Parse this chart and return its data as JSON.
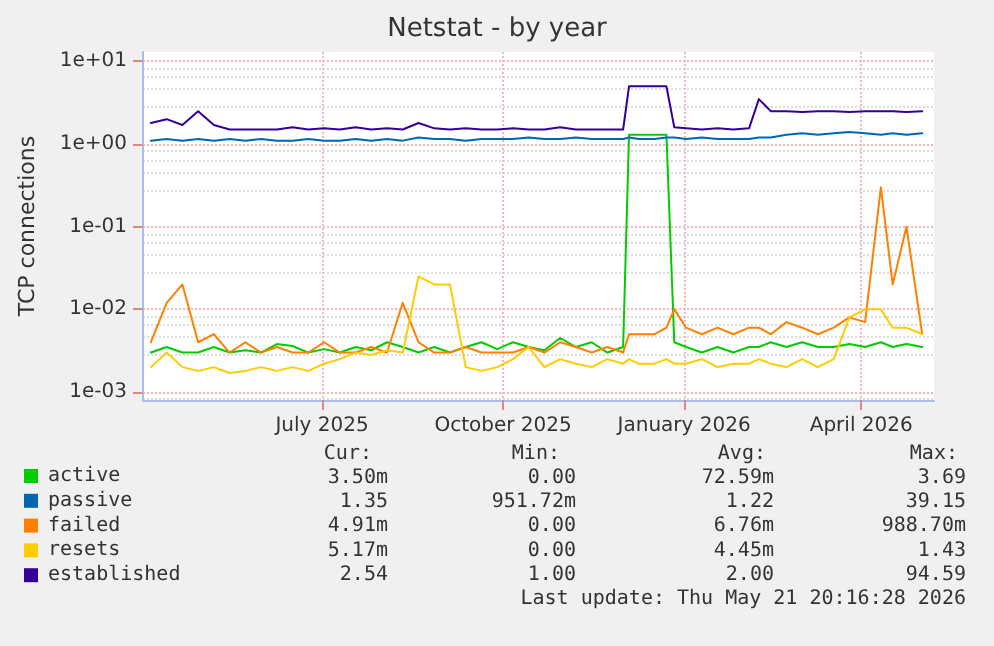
{
  "chart_data": {
    "type": "line",
    "title": "Netstat - by year",
    "ylabel": "TCP connections",
    "x": [
      "2025-04-05",
      "2025-04-13",
      "2025-04-21",
      "2025-04-29",
      "2025-05-07",
      "2025-05-15",
      "2025-05-23",
      "2025-05-31",
      "2025-06-08",
      "2025-06-16",
      "2025-06-24",
      "2025-07-02",
      "2025-07-10",
      "2025-07-18",
      "2025-07-26",
      "2025-08-03",
      "2025-08-11",
      "2025-08-19",
      "2025-08-27",
      "2025-09-04",
      "2025-09-12",
      "2025-09-20",
      "2025-09-28",
      "2025-10-06",
      "2025-10-14",
      "2025-10-22",
      "2025-10-30",
      "2025-11-07",
      "2025-11-15",
      "2025-11-23",
      "2025-12-01",
      "2025-12-04",
      "2025-12-09",
      "2025-12-17",
      "2025-12-23",
      "2025-12-27",
      "2026-01-02",
      "2026-01-10",
      "2026-01-18",
      "2026-01-26",
      "2026-02-03",
      "2026-02-08",
      "2026-02-14",
      "2026-02-22",
      "2026-03-02",
      "2026-03-10",
      "2026-03-18",
      "2026-03-26",
      "2026-04-03",
      "2026-04-11",
      "2026-04-17",
      "2026-04-24",
      "2026-05-02"
    ],
    "series": [
      {
        "name": "active",
        "color": "#00cc00",
        "values": [
          0.003,
          0.0035,
          0.003,
          0.003,
          0.0035,
          0.003,
          0.0032,
          0.003,
          0.0038,
          0.0036,
          0.003,
          0.0033,
          0.003,
          0.0035,
          0.0032,
          0.004,
          0.0035,
          0.003,
          0.0035,
          0.003,
          0.0035,
          0.004,
          0.0033,
          0.004,
          0.0035,
          0.0032,
          0.0045,
          0.0035,
          0.004,
          0.003,
          0.0035,
          1.3,
          1.3,
          1.3,
          1.3,
          0.004,
          0.0035,
          0.003,
          0.0035,
          0.003,
          0.0035,
          0.0035,
          0.004,
          0.0035,
          0.004,
          0.0035,
          0.0035,
          0.0038,
          0.0035,
          0.004,
          0.0035,
          0.0038,
          0.0035
        ]
      },
      {
        "name": "passive",
        "color": "#0066b3",
        "values": [
          1.1,
          1.15,
          1.1,
          1.15,
          1.1,
          1.15,
          1.1,
          1.15,
          1.1,
          1.1,
          1.15,
          1.1,
          1.1,
          1.15,
          1.1,
          1.15,
          1.1,
          1.2,
          1.15,
          1.15,
          1.1,
          1.15,
          1.15,
          1.15,
          1.2,
          1.15,
          1.15,
          1.2,
          1.15,
          1.15,
          1.15,
          1.2,
          1.15,
          1.15,
          1.2,
          1.2,
          1.15,
          1.2,
          1.15,
          1.15,
          1.15,
          1.2,
          1.2,
          1.3,
          1.35,
          1.3,
          1.35,
          1.4,
          1.35,
          1.3,
          1.35,
          1.3,
          1.35
        ]
      },
      {
        "name": "failed",
        "color": "#ff8000",
        "values": [
          0.004,
          0.012,
          0.02,
          0.004,
          0.005,
          0.003,
          0.004,
          0.003,
          0.0035,
          0.003,
          0.003,
          0.004,
          0.003,
          0.003,
          0.0035,
          0.003,
          0.012,
          0.004,
          0.003,
          0.003,
          0.0035,
          0.003,
          0.003,
          0.003,
          0.0035,
          0.003,
          0.004,
          0.0035,
          0.003,
          0.0035,
          0.003,
          0.005,
          0.005,
          0.005,
          0.006,
          0.01,
          0.006,
          0.005,
          0.006,
          0.005,
          0.006,
          0.006,
          0.005,
          0.007,
          0.006,
          0.005,
          0.006,
          0.008,
          0.007,
          0.3,
          0.02,
          0.1,
          0.005
        ]
      },
      {
        "name": "resets",
        "color": "#ffcc00",
        "values": [
          0.002,
          0.003,
          0.002,
          0.0018,
          0.002,
          0.0017,
          0.0018,
          0.002,
          0.0018,
          0.002,
          0.0018,
          0.0022,
          0.0025,
          0.003,
          0.0028,
          0.0032,
          0.003,
          0.025,
          0.02,
          0.02,
          0.002,
          0.0018,
          0.002,
          0.0025,
          0.0035,
          0.002,
          0.0025,
          0.0022,
          0.002,
          0.0025,
          0.0022,
          0.0025,
          0.0022,
          0.0022,
          0.0025,
          0.0022,
          0.0022,
          0.0025,
          0.002,
          0.0022,
          0.0022,
          0.0025,
          0.0022,
          0.002,
          0.0025,
          0.002,
          0.0025,
          0.008,
          0.01,
          0.01,
          0.006,
          0.006,
          0.005
        ]
      },
      {
        "name": "established",
        "color": "#330099",
        "values": [
          1.8,
          2.0,
          1.7,
          2.5,
          1.7,
          1.5,
          1.5,
          1.5,
          1.5,
          1.6,
          1.5,
          1.55,
          1.5,
          1.6,
          1.5,
          1.55,
          1.5,
          1.8,
          1.55,
          1.5,
          1.55,
          1.5,
          1.5,
          1.55,
          1.5,
          1.5,
          1.6,
          1.5,
          1.5,
          1.5,
          1.5,
          5.0,
          5.0,
          5.0,
          5.0,
          1.6,
          1.55,
          1.5,
          1.55,
          1.5,
          1.55,
          3.5,
          2.5,
          2.5,
          2.45,
          2.5,
          2.5,
          2.45,
          2.5,
          2.5,
          2.5,
          2.45,
          2.5
        ]
      }
    ],
    "xlim": [
      "2025-04-01",
      "2026-05-08"
    ],
    "xticks": [
      {
        "value": "2025-07-01",
        "label": "July 2025"
      },
      {
        "value": "2025-10-01",
        "label": "October 2025"
      },
      {
        "value": "2026-01-01",
        "label": "January 2026"
      },
      {
        "value": "2026-04-01",
        "label": "April 2026"
      }
    ],
    "ylim": [
      0.0008,
      13
    ],
    "yticks": [
      {
        "value": 0.001,
        "label": "1e-03"
      },
      {
        "value": 0.01,
        "label": "1e-02"
      },
      {
        "value": 0.1,
        "label": "1e-01"
      },
      {
        "value": 1,
        "label": "1e+00"
      },
      {
        "value": 10,
        "label": "1e+01"
      }
    ],
    "log": true,
    "grid": true,
    "legend": "bottom left",
    "marker": "none",
    "line_style": "solid",
    "annotations": [
      "Cur:",
      "Min:",
      "Avg:",
      "Max:",
      "3.50m",
      "0.00",
      "72.59m",
      "3.69",
      "1.35",
      "951.72m",
      "1.22",
      "39.15",
      "4.91m",
      "0.00",
      "6.76m",
      "988.70m",
      "5.17m",
      "0.00",
      "4.45m",
      "1.43",
      "2.54",
      "1.00",
      "2.00",
      "94.59",
      "Last update: Thu May 21 20:16:28 2026"
    ]
  }
}
